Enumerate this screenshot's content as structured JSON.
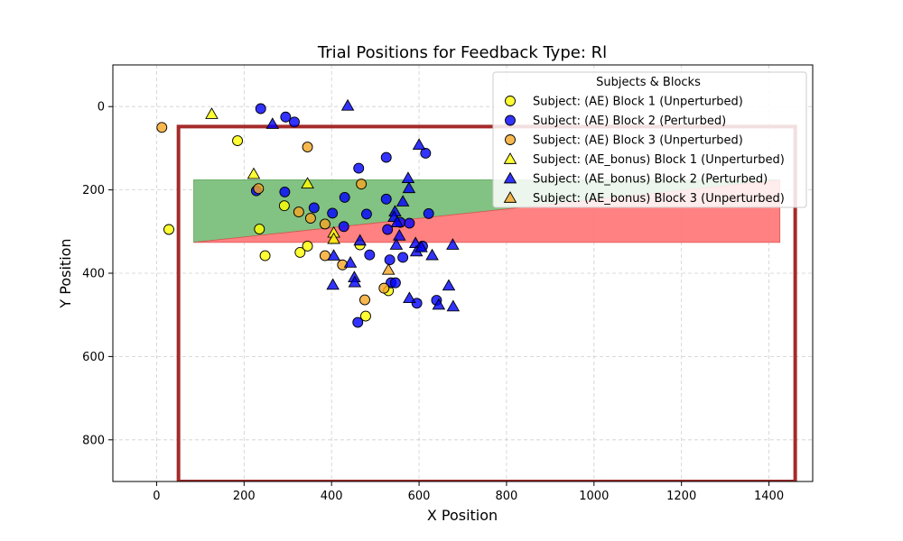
{
  "chart_data": {
    "type": "scatter",
    "title": "Trial Positions for Feedback Type: Rl",
    "xlabel": "X Position",
    "ylabel": "Y Position",
    "xlim": [
      -100,
      1500
    ],
    "ylim": [
      900,
      -100
    ],
    "y_inverted": true,
    "x_ticks": [
      0,
      200,
      400,
      600,
      800,
      1000,
      1200,
      1400
    ],
    "y_ticks": [
      0,
      200,
      400,
      600,
      800
    ],
    "grid": true,
    "legend_placement": "top-right",
    "legend_title": "Subjects & Blocks",
    "workspace_boundary": {
      "x": [
        50,
        1460
      ],
      "y": [
        48,
        900
      ],
      "color": "#a52a2a"
    },
    "regions": [
      {
        "color": "#7cbf7c",
        "polygon": [
          [
            85,
            176
          ],
          [
            1425,
            176
          ],
          [
            1425,
            176
          ],
          [
            85,
            326
          ]
        ]
      },
      {
        "color": "#ff7b7b",
        "polygon": [
          [
            85,
            326
          ],
          [
            1425,
            176
          ],
          [
            1425,
            326
          ],
          [
            85,
            326
          ]
        ]
      }
    ],
    "series": [
      {
        "name": "Subject: (AE) Block 1 (Unperturbed)",
        "marker": "circle",
        "color": "#ffff00",
        "points": [
          [
            185,
            82
          ],
          [
            235,
            294
          ],
          [
            248,
            358
          ],
          [
            292,
            238
          ],
          [
            328,
            350
          ],
          [
            345,
            335
          ],
          [
            465,
            332
          ],
          [
            478,
            503
          ],
          [
            28,
            295
          ],
          [
            530,
            442
          ]
        ]
      },
      {
        "name": "Subject: (AE) Block 2 (Perturbed)",
        "marker": "circle",
        "color": "#0000ff",
        "points": [
          [
            238,
            5
          ],
          [
            295,
            25
          ],
          [
            315,
            37
          ],
          [
            228,
            202
          ],
          [
            293,
            205
          ],
          [
            360,
            243
          ],
          [
            402,
            256
          ],
          [
            430,
            218
          ],
          [
            428,
            288
          ],
          [
            462,
            148
          ],
          [
            480,
            258
          ],
          [
            487,
            356
          ],
          [
            525,
            122
          ],
          [
            525,
            222
          ],
          [
            528,
            295
          ],
          [
            533,
            368
          ],
          [
            536,
            423
          ],
          [
            546,
            423
          ],
          [
            557,
            278
          ],
          [
            563,
            362
          ],
          [
            578,
            280
          ],
          [
            595,
            472
          ],
          [
            608,
            335
          ],
          [
            615,
            112
          ],
          [
            622,
            257
          ],
          [
            640,
            465
          ],
          [
            460,
            518
          ]
        ]
      },
      {
        "name": "Subject: (AE) Block 3 (Unperturbed)",
        "marker": "circle",
        "color": "#f5a623",
        "points": [
          [
            12,
            50
          ],
          [
            233,
            197
          ],
          [
            325,
            253
          ],
          [
            345,
            97
          ],
          [
            352,
            268
          ],
          [
            385,
            282
          ],
          [
            385,
            358
          ],
          [
            425,
            380
          ],
          [
            468,
            186
          ],
          [
            476,
            464
          ],
          [
            520,
            436
          ]
        ]
      },
      {
        "name": "Subject: (AE_bonus) Block 1 (Unperturbed)",
        "marker": "triangle",
        "color": "#ffff00",
        "points": [
          [
            126,
            18
          ],
          [
            222,
            162
          ],
          [
            345,
            185
          ],
          [
            405,
            303
          ],
          [
            405,
            318
          ]
        ]
      },
      {
        "name": "Subject: (AE_bonus) Block 2 (Perturbed)",
        "marker": "triangle",
        "color": "#0000ff",
        "points": [
          [
            265,
            42
          ],
          [
            437,
            -2
          ],
          [
            600,
            92
          ],
          [
            575,
            172
          ],
          [
            577,
            196
          ],
          [
            563,
            228
          ],
          [
            545,
            252
          ],
          [
            543,
            265
          ],
          [
            550,
            278
          ],
          [
            555,
            310
          ],
          [
            548,
            332
          ],
          [
            592,
            328
          ],
          [
            594,
            348
          ],
          [
            630,
            357
          ],
          [
            605,
            338
          ],
          [
            677,
            332
          ],
          [
            465,
            322
          ],
          [
            443,
            375
          ],
          [
            452,
            410
          ],
          [
            453,
            422
          ],
          [
            405,
            358
          ],
          [
            403,
            428
          ],
          [
            578,
            460
          ],
          [
            645,
            476
          ],
          [
            668,
            430
          ],
          [
            678,
            480
          ]
        ]
      },
      {
        "name": "Subject: (AE_bonus) Block 3 (Unperturbed)",
        "marker": "triangle",
        "color": "#f5a623",
        "points": [
          [
            530,
            392
          ]
        ]
      }
    ]
  }
}
